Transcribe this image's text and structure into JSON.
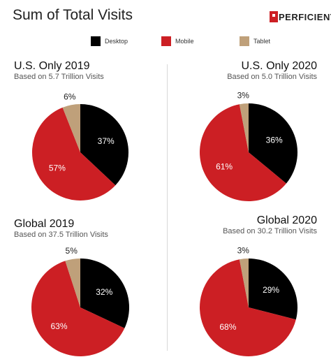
{
  "header": {
    "title": "Sum of Total Visits",
    "logo_text": "PERFICIENT"
  },
  "legend": [
    {
      "label": "Desktop",
      "color": "#000000"
    },
    {
      "label": "Mobile",
      "color": "#cc1f24"
    },
    {
      "label": "Tablet",
      "color": "#bfa07a"
    }
  ],
  "chart_data": [
    {
      "type": "pie",
      "title": "U.S. Only 2019",
      "subtitle": "Based on 5.7 Trillion Visits",
      "categories": [
        "Desktop",
        "Mobile",
        "Tablet"
      ],
      "values": [
        37,
        57,
        6
      ],
      "labels": [
        "37%",
        "57%",
        "6%"
      ]
    },
    {
      "type": "pie",
      "title": "U.S. Only 2020",
      "subtitle": "Based on 5.0 Trillion Visits",
      "categories": [
        "Desktop",
        "Mobile",
        "Tablet"
      ],
      "values": [
        36,
        61,
        3
      ],
      "labels": [
        "36%",
        "61%",
        "3%"
      ]
    },
    {
      "type": "pie",
      "title": "Global 2019",
      "subtitle": "Based on 37.5 Trillion Visits",
      "categories": [
        "Desktop",
        "Mobile",
        "Tablet"
      ],
      "values": [
        32,
        63,
        5
      ],
      "labels": [
        "32%",
        "63%",
        "5%"
      ]
    },
    {
      "type": "pie",
      "title": "Global 2020",
      "subtitle": "Based on 30.2 Trillion Visits",
      "categories": [
        "Desktop",
        "Mobile",
        "Tablet"
      ],
      "values": [
        29,
        68,
        3
      ],
      "labels": [
        "29%",
        "68%",
        "3%"
      ]
    }
  ]
}
